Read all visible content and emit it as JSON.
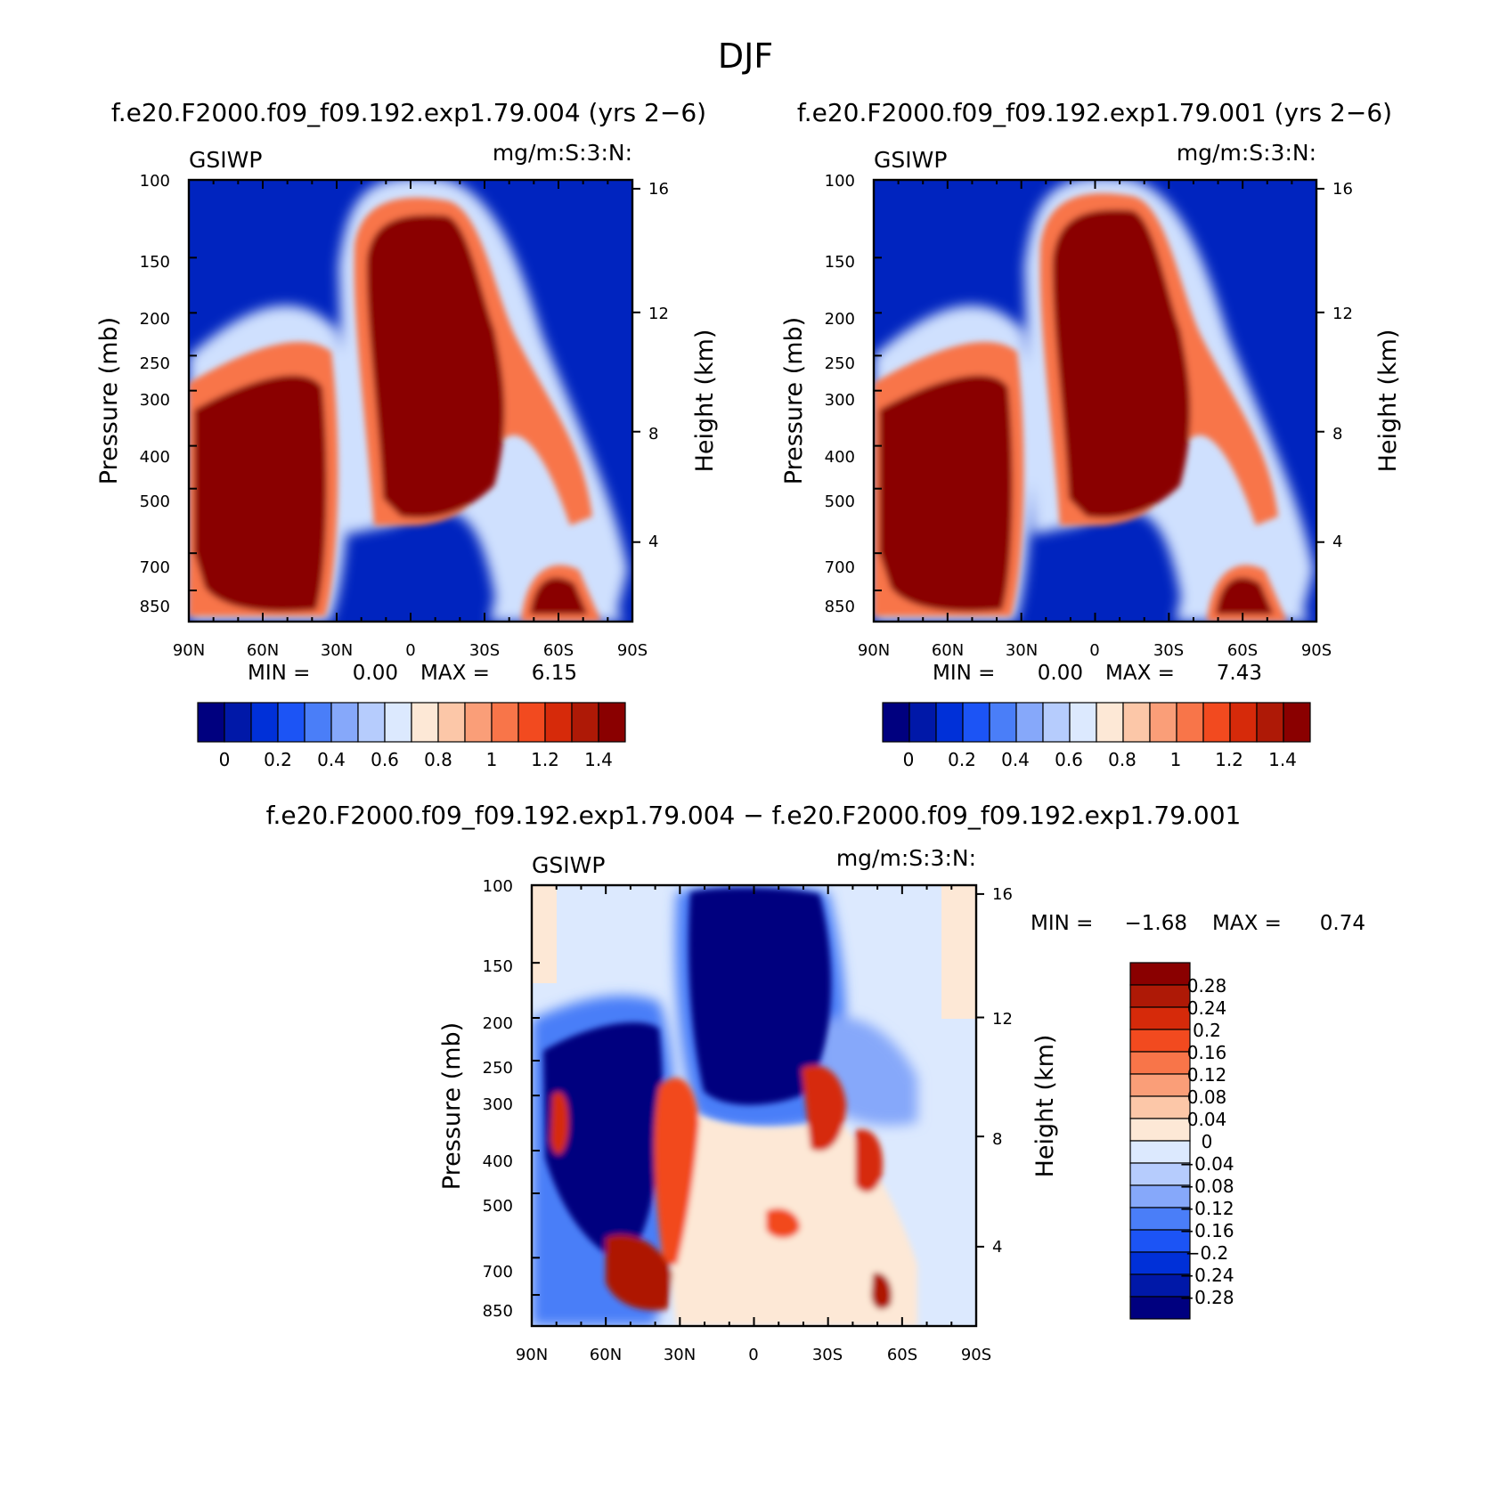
{
  "figure": {
    "title": "DJF",
    "panel_top_left_title": "f.e20.F2000.f09_f09.192.exp1.79.004 (yrs 2−6)",
    "panel_top_right_title": "f.e20.F2000.f09_f09.192.exp1.79.001 (yrs 2−6)",
    "panel_bottom_title": "f.e20.F2000.f09_f09.192.exp1.79.004 − f.e20.F2000.f09_f09.192.exp1.79.001"
  },
  "chart_data": [
    {
      "type": "heatmap",
      "id": "case",
      "variable": "GSIWP",
      "units": "mg/m:S:3:N:",
      "xlabel": "",
      "ylabel": "Pressure (mb)",
      "ylabel_right": "Height (km)",
      "x_ticks": [
        "90N",
        "60N",
        "30N",
        "0",
        "30S",
        "60S",
        "90S"
      ],
      "y_ticks": [
        "100",
        "150",
        "200",
        "250",
        "300",
        "400",
        "500",
        "700",
        "850"
      ],
      "y_right_ticks": [
        "16",
        "12",
        "8",
        "4"
      ],
      "xlim": [
        90,
        -90
      ],
      "ylim": [
        100,
        1000
      ],
      "min_label": "MIN =",
      "min_value": "0.00",
      "max_label": "MAX =",
      "max_value": "6.15",
      "colorbar_levels": [
        0,
        0.1,
        0.2,
        0.3,
        0.4,
        0.5,
        0.6,
        0.7,
        0.8,
        0.9,
        1,
        1.1,
        1.2,
        1.3,
        1.4
      ],
      "colorbar_labels": [
        "0",
        "0.2",
        "0.4",
        "0.6",
        "0.8",
        "1",
        "1.2",
        "1.4"
      ],
      "colorbar_colors": [
        "#00007f",
        "#0018a8",
        "#0030d8",
        "#1c54f5",
        "#4a7ef8",
        "#86a8fa",
        "#b6ccfd",
        "#dce9fe",
        "#fde8d6",
        "#fcc7a8",
        "#fa9e78",
        "#f87549",
        "#f24a1f",
        "#d62a0a",
        "#ae1906",
        "#8a0000"
      ]
    },
    {
      "type": "heatmap",
      "id": "control",
      "variable": "GSIWP",
      "units": "mg/m:S:3:N:",
      "xlabel": "",
      "ylabel": "Pressure (mb)",
      "ylabel_right": "Height (km)",
      "x_ticks": [
        "90N",
        "60N",
        "30N",
        "0",
        "30S",
        "60S",
        "90S"
      ],
      "y_ticks": [
        "100",
        "150",
        "200",
        "250",
        "300",
        "400",
        "500",
        "700",
        "850"
      ],
      "y_right_ticks": [
        "16",
        "12",
        "8",
        "4"
      ],
      "xlim": [
        90,
        -90
      ],
      "ylim": [
        100,
        1000
      ],
      "min_label": "MIN =",
      "min_value": "0.00",
      "max_label": "MAX =",
      "max_value": "7.43",
      "colorbar_levels": [
        0,
        0.1,
        0.2,
        0.3,
        0.4,
        0.5,
        0.6,
        0.7,
        0.8,
        0.9,
        1,
        1.1,
        1.2,
        1.3,
        1.4
      ],
      "colorbar_labels": [
        "0",
        "0.2",
        "0.4",
        "0.6",
        "0.8",
        "1",
        "1.2",
        "1.4"
      ],
      "colorbar_colors": [
        "#00007f",
        "#0018a8",
        "#0030d8",
        "#1c54f5",
        "#4a7ef8",
        "#86a8fa",
        "#b6ccfd",
        "#dce9fe",
        "#fde8d6",
        "#fcc7a8",
        "#fa9e78",
        "#f87549",
        "#f24a1f",
        "#d62a0a",
        "#ae1906",
        "#8a0000"
      ]
    },
    {
      "type": "heatmap",
      "id": "difference",
      "variable": "GSIWP",
      "units": "mg/m:S:3:N:",
      "xlabel": "",
      "ylabel": "Pressure (mb)",
      "ylabel_right": "Height (km)",
      "x_ticks": [
        "90N",
        "60N",
        "30N",
        "0",
        "30S",
        "60S",
        "90S"
      ],
      "y_ticks": [
        "100",
        "150",
        "200",
        "250",
        "300",
        "400",
        "500",
        "700",
        "850"
      ],
      "y_right_ticks": [
        "16",
        "12",
        "8",
        "4"
      ],
      "xlim": [
        90,
        -90
      ],
      "ylim": [
        100,
        1000
      ],
      "min_label": "MIN =",
      "min_value": "−1.68",
      "max_label": "MAX =",
      "max_value": "0.74",
      "colorbar_levels": [
        -0.28,
        -0.24,
        -0.2,
        -0.16,
        -0.12,
        -0.08,
        -0.04,
        0,
        0.04,
        0.08,
        0.12,
        0.16,
        0.2,
        0.24,
        0.28
      ],
      "colorbar_labels": [
        "0.28",
        "0.24",
        "0.2",
        "0.16",
        "0.12",
        "0.08",
        "0.04",
        "0",
        "−0.04",
        "−0.08",
        "−0.12",
        "−0.16",
        "−0.2",
        "−0.24",
        "−0.28"
      ],
      "colorbar_colors": [
        "#8a0000",
        "#ae1906",
        "#d62a0a",
        "#f24a1f",
        "#f87549",
        "#fa9e78",
        "#fcc7a8",
        "#fde8d6",
        "#dce9fe",
        "#b6ccfd",
        "#86a8fa",
        "#4a7ef8",
        "#1c54f5",
        "#0030d8",
        "#0018a8",
        "#00007f"
      ]
    }
  ]
}
